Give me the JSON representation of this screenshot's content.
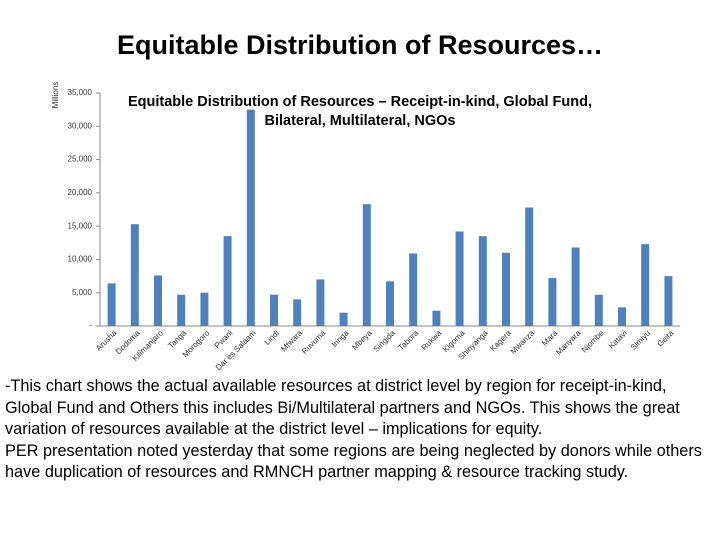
{
  "slide_title": "Equitable Distribution of Resources…",
  "chart_data": {
    "type": "bar",
    "title": "Equitable Distribution of Resources – Receipt-in-kind, Global Fund, Bilateral, Multilateral, NGOs",
    "y_label": "Millions",
    "categories": [
      "Arusha",
      "Dodoma",
      "Kilimanjaro",
      "Tanga",
      "Morogoro",
      "Pwani",
      "Dar es Salaam",
      "Lindi",
      "Mtwara",
      "Ruvuma",
      "Iringa",
      "Mbeya",
      "Singida",
      "Tabora",
      "Rukwa",
      "Kigoma",
      "Shinyanga",
      "Kagera",
      "Mwanza",
      "Mara",
      "Manyara",
      "Njombe",
      "Katavi",
      "Simiyu",
      "Geita"
    ],
    "values": [
      6400,
      15300,
      7600,
      4700,
      5000,
      13500,
      32500,
      4700,
      4000,
      7000,
      2000,
      18300,
      6700,
      10900,
      2300,
      14200,
      13500,
      11000,
      17800,
      7200,
      11800,
      4700,
      2800,
      12300,
      7500
    ],
    "color": "#4f81bd",
    "ylim": [
      0,
      35000
    ],
    "yticks": [
      {
        "value": 0,
        "label": "-"
      },
      {
        "value": 5000,
        "label": "5,000"
      },
      {
        "value": 10000,
        "label": "10,000"
      },
      {
        "value": 15000,
        "label": "15,000"
      },
      {
        "value": 20000,
        "label": "20,000"
      },
      {
        "value": 25000,
        "label": "25,000"
      },
      {
        "value": 30000,
        "label": "30,000"
      },
      {
        "value": 35000,
        "label": "35,000"
      }
    ],
    "grid": false
  },
  "body": [
    "-This chart shows the actual available resources at district level by region for receipt-in-kind, Global Fund and Others this includes Bi/Multilateral partners and NGOs.  This shows the great variation of resources available at the district level – implications for equity.",
    "PER presentation noted yesterday that some regions are being neglected by donors while others have duplication of resources and  RMNCH partner mapping & resource tracking study."
  ]
}
